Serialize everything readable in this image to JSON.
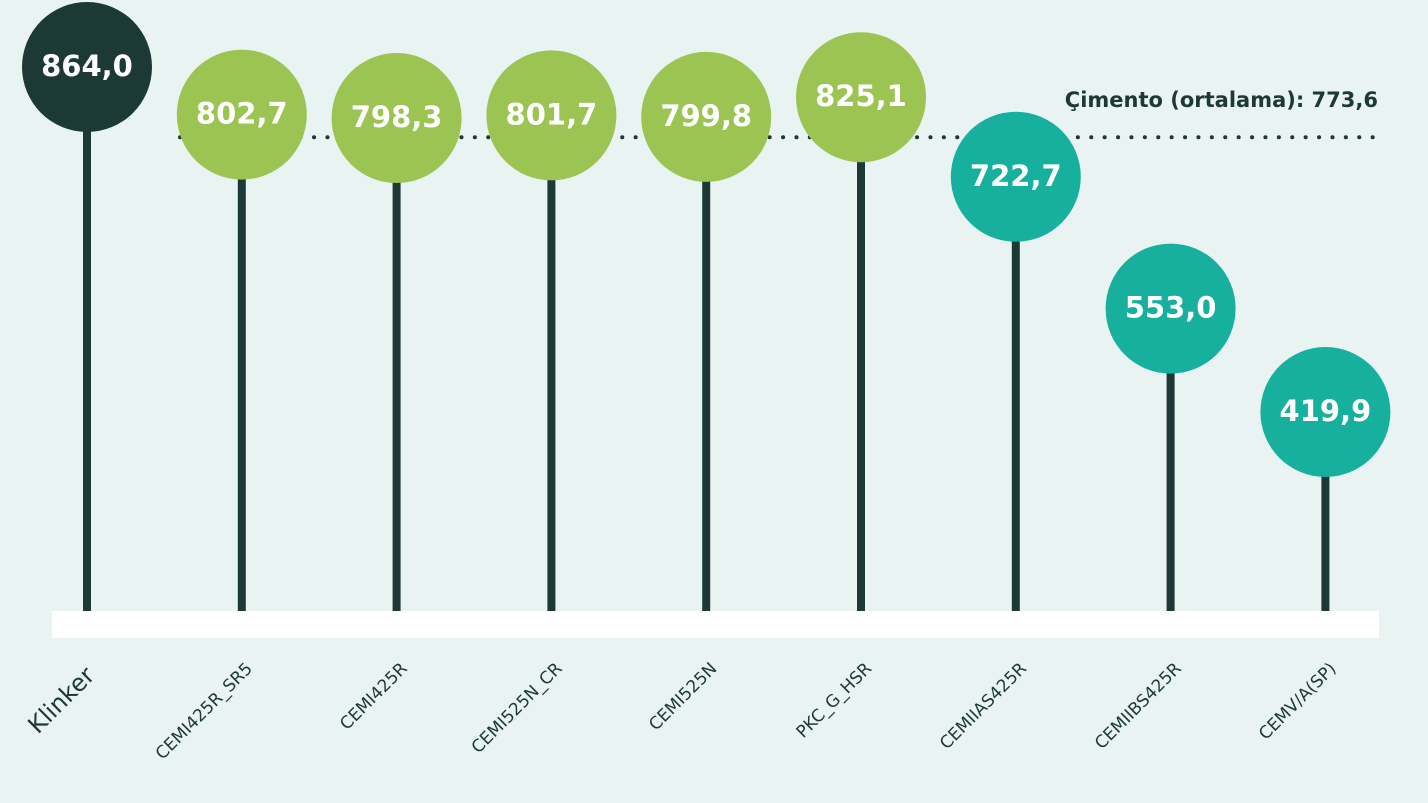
{
  "chart_data": {
    "type": "lollipop",
    "categories": [
      "Klinker",
      "CEMI425R_SR5",
      "CEMI425R",
      "CEMI525N_CR",
      "CEMI525N",
      "PKC_G_HSR",
      "CEMIIAS425R",
      "CEMIIBS425R",
      "CEMV/A(SP)"
    ],
    "values": [
      864.0,
      802.7,
      798.3,
      801.7,
      799.8,
      825.1,
      722.7,
      553.0,
      419.9
    ],
    "value_labels": [
      "864,0",
      "802,7",
      "798,3",
      "801,7",
      "799,8",
      "825,1",
      "722,7",
      "553,0",
      "419,9"
    ],
    "colors": [
      "#1c3935",
      "#9bc453",
      "#9bc453",
      "#9bc453",
      "#9bc453",
      "#9bc453",
      "#17b09f",
      "#17b09f",
      "#17b09f"
    ],
    "reference_line": {
      "value": 773.6,
      "label": "Çimento (ortalama): 773,6"
    }
  }
}
